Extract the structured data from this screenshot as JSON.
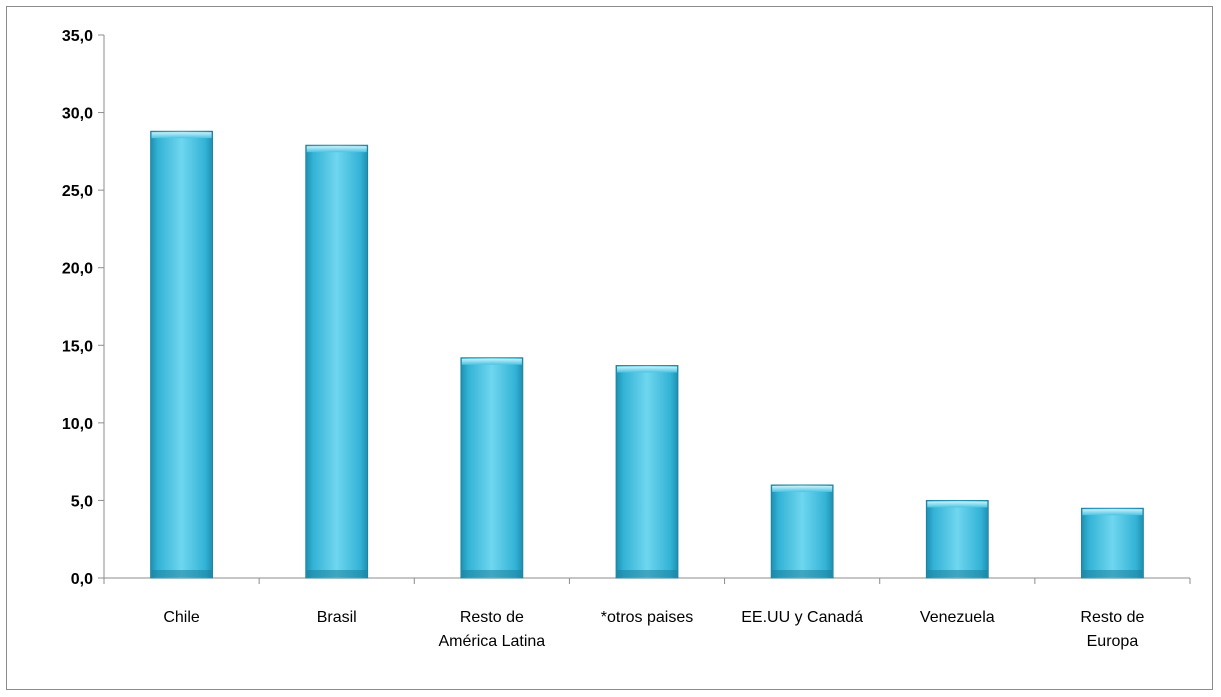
{
  "chart_data": {
    "type": "bar",
    "title": "",
    "xlabel": "",
    "ylabel": "",
    "categories": [
      [
        "Chile"
      ],
      [
        "Brasil"
      ],
      [
        "Resto de",
        "América Latina"
      ],
      [
        "*otros paises"
      ],
      [
        "EE.UU y Canadá"
      ],
      [
        "Venezuela"
      ],
      [
        "Resto de",
        "Europa"
      ]
    ],
    "values": [
      28.8,
      27.9,
      14.2,
      13.7,
      6.0,
      5.0,
      4.5
    ],
    "ylim": [
      0,
      35
    ],
    "yticks": [
      "0,0",
      "5,0",
      "10,0",
      "15,0",
      "20,0",
      "25,0",
      "30,0",
      "35,0"
    ],
    "grid": false,
    "legend": "none",
    "colors": {
      "bar_top": "#6fd6ef",
      "bar_mid": "#33b3d6",
      "bar_bottom": "#1e8fb0",
      "bar_edge": "#1a7f9c",
      "axis": "#8c8c8c"
    }
  }
}
